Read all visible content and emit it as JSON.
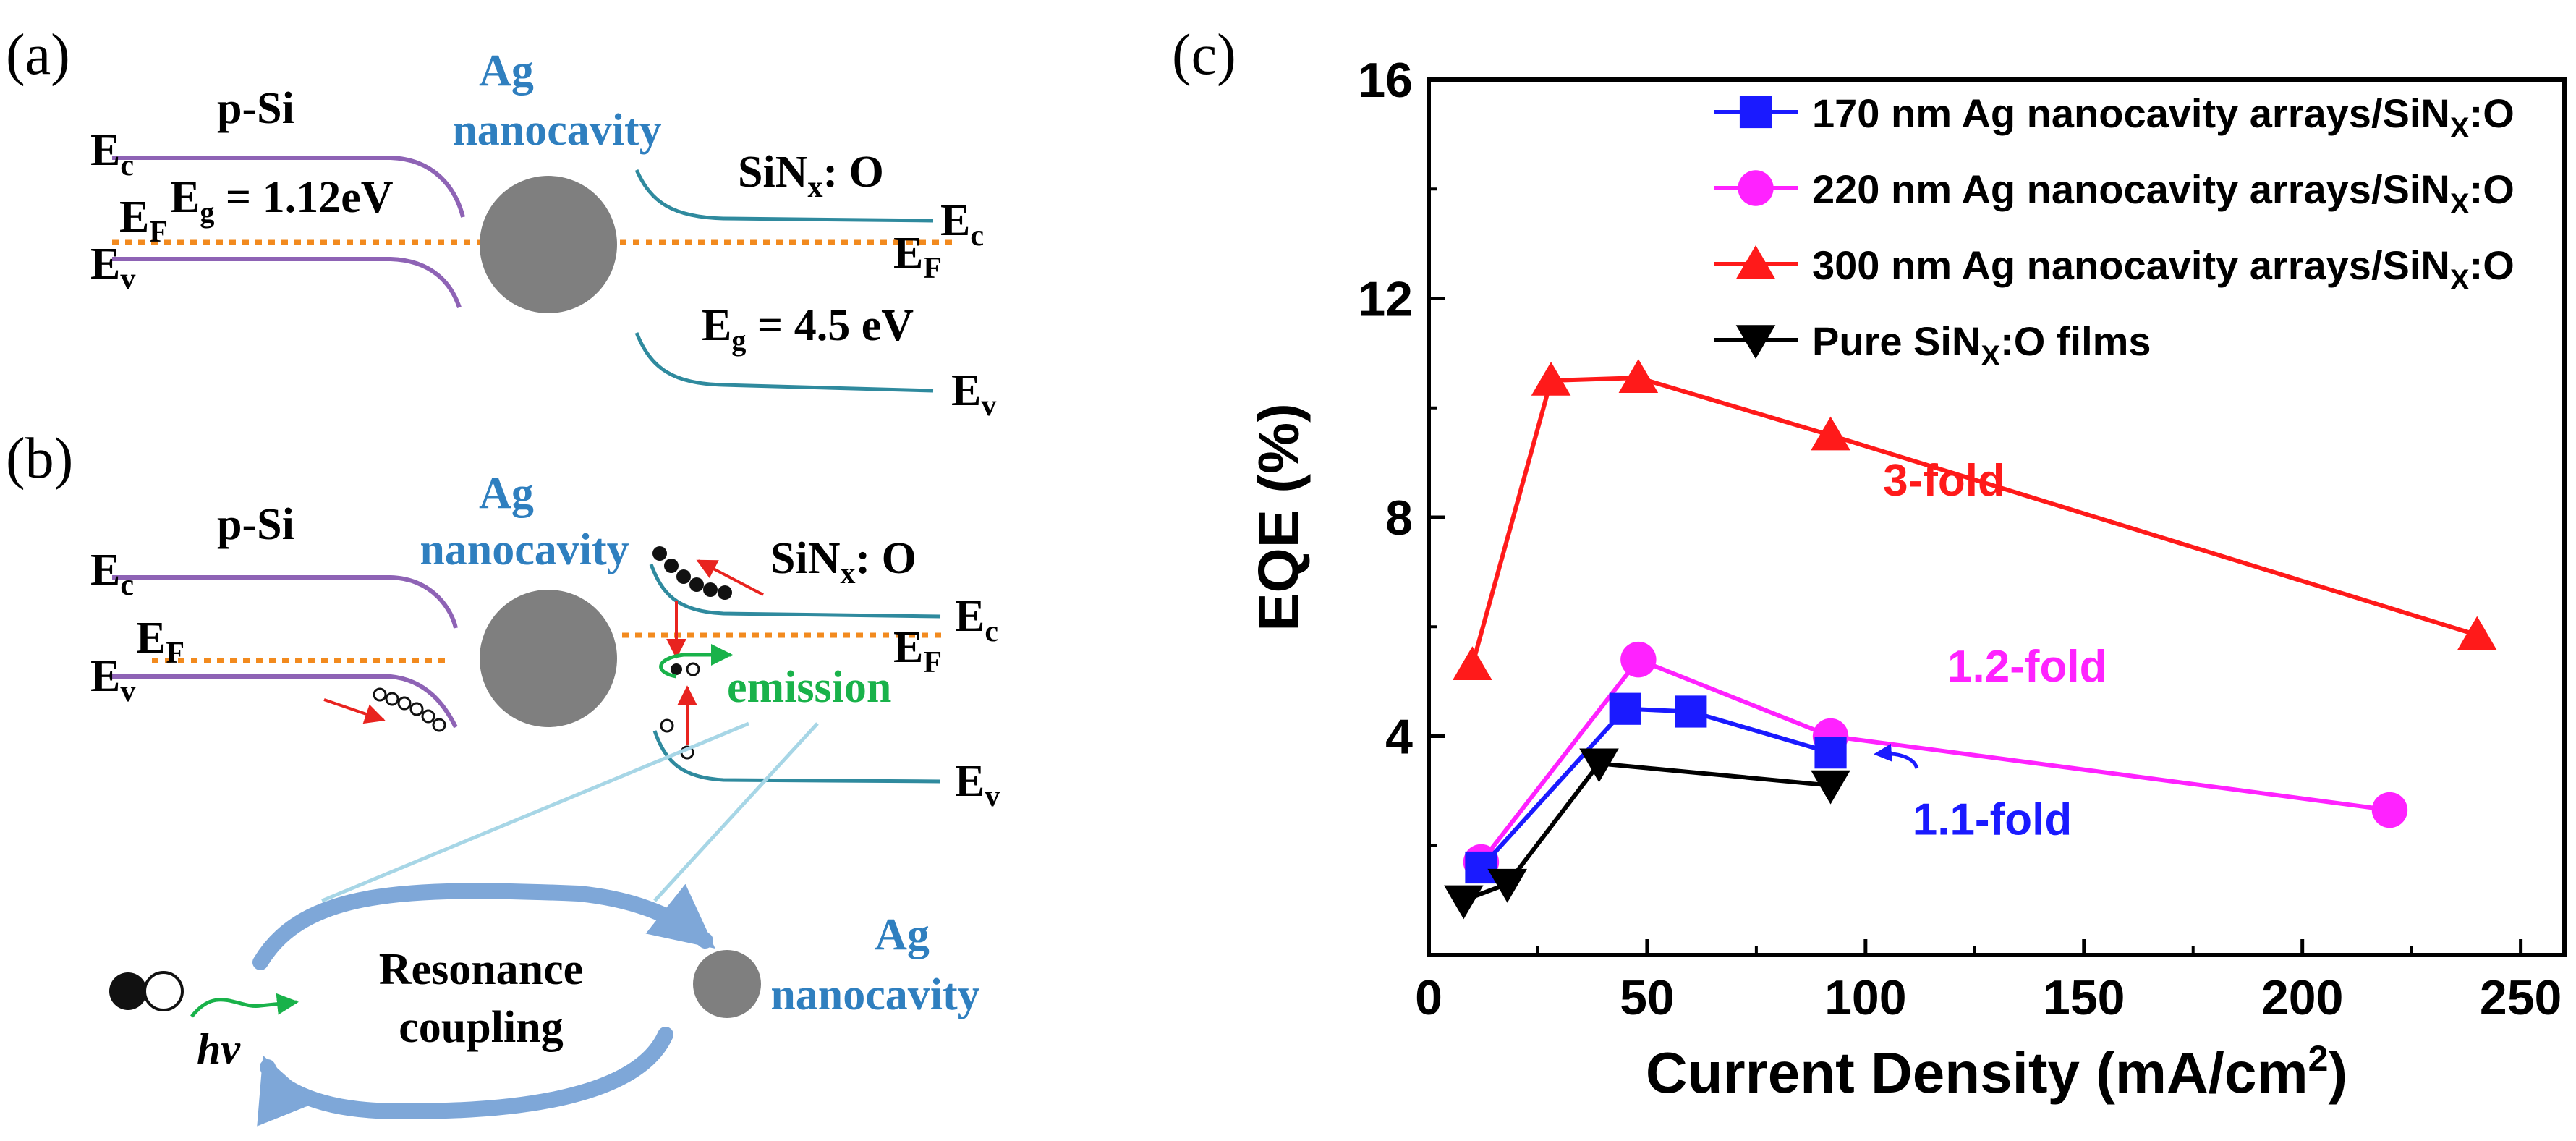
{
  "panel_a": {
    "tag": "(a)",
    "psi": "p-Si",
    "ag1": "Ag",
    "ag2": "nanocavity",
    "sinx_main": "SiN",
    "sinx_sub": "x",
    "sinx_tail": ": O",
    "ec": "E",
    "ec_sub": "c",
    "ev": "E",
    "ev_sub": "v",
    "ef": "E",
    "ef_sub": "F",
    "eg_si_main": "E",
    "eg_si_sub": "g",
    "eg_si_val": " = 1.12eV",
    "ec_r": "E",
    "ec_r_sub": "c",
    "ef_r": "E",
    "ef_r_sub": "F",
    "eg_r_main": "E",
    "eg_r_sub": "g",
    "eg_r_val": " = 4.5 eV",
    "ev_r": "E",
    "ev_r_sub": "v"
  },
  "panel_b": {
    "tag": "(b)",
    "psi": "p-Si",
    "ag1": "Ag",
    "ag2": "nanocavity",
    "sinx_main": "SiN",
    "sinx_sub": "x",
    "sinx_tail": ": O",
    "ec": "E",
    "ec_sub": "c",
    "ev": "E",
    "ev_sub": "v",
    "ef": "E",
    "ef_sub": "F",
    "ec_r": "E",
    "ec_r_sub": "c",
    "ef_r": "E",
    "ef_r_sub": "F",
    "ev_r": "E",
    "ev_r_sub": "v",
    "emission": "emission",
    "hv": "hν",
    "res1": "Resonance",
    "res2": "coupling",
    "ag_bot1": "Ag",
    "ag_bot2": "nanocavity"
  },
  "chart_data": {
    "tag": "(c)",
    "type": "line",
    "xlabel": "Current Density (mA/cm",
    "xlabel_sup": "2",
    "xlabel_end": ")",
    "ylabel": "EQE (%)",
    "xlim": [
      0,
      260
    ],
    "ylim": [
      0,
      16
    ],
    "xticks": [
      0,
      50,
      100,
      150,
      200,
      250
    ],
    "yticks": [
      4,
      8,
      12,
      16
    ],
    "series": [
      {
        "name": "170 nm Ag nanocavity arrays/SiN",
        "name_sub": "X",
        "name_tail": ":O",
        "color": "#1a1aff",
        "marker": "square",
        "x": [
          12,
          45,
          60,
          92
        ],
        "y": [
          1.6,
          4.5,
          4.45,
          3.7
        ]
      },
      {
        "name": "220 nm Ag nanocavity arrays/SiN",
        "name_sub": "X",
        "name_tail": ":O",
        "color": "#ff22ff",
        "marker": "circle",
        "x": [
          12,
          48,
          92,
          220
        ],
        "y": [
          1.7,
          5.4,
          4.0,
          2.65
        ]
      },
      {
        "name": "300 nm Ag nanocavity arrays/SiN",
        "name_sub": "X",
        "name_tail": ":O",
        "color": "#ff1a1a",
        "marker": "triangle",
        "x": [
          10,
          28,
          48,
          92,
          240
        ],
        "y": [
          5.3,
          10.5,
          10.55,
          9.5,
          5.85
        ]
      },
      {
        "name": "Pure SiN",
        "name_sub": "X",
        "name_tail": ":O films",
        "color": "#000000",
        "marker": "triangle-down",
        "x": [
          8,
          18,
          39,
          92
        ],
        "y": [
          1.0,
          1.3,
          3.5,
          3.1
        ]
      }
    ],
    "annotations": [
      {
        "text": "3-fold",
        "color": "#ff1a1a",
        "x": 118,
        "y": 8.4
      },
      {
        "text": "1.2-fold",
        "color": "#ff22ff",
        "x": 137,
        "y": 5.0
      },
      {
        "text": "1.1-fold",
        "color": "#1a1aff",
        "x": 129,
        "y": 2.2
      }
    ]
  }
}
